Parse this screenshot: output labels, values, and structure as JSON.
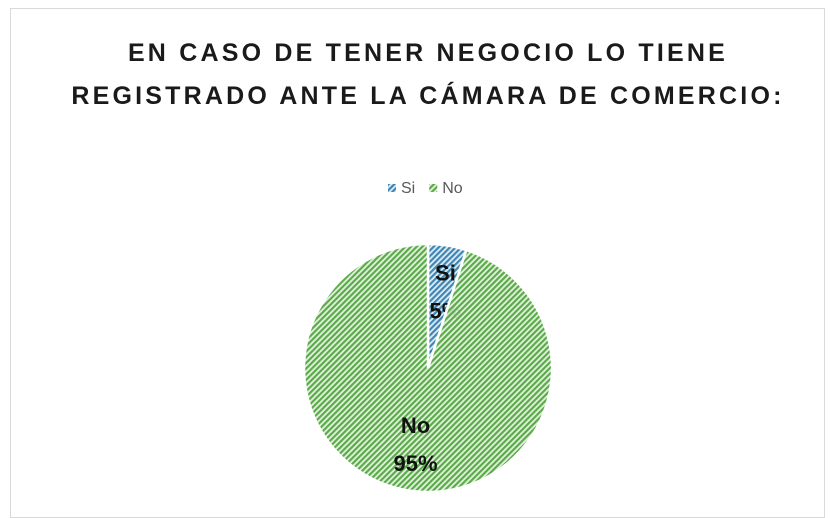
{
  "chart_data": {
    "type": "pie",
    "title": "EN CASO DE TENER NEGOCIO LO TIENE REGISTRADO ANTE LA CÁMARA DE COMERCIO:",
    "categories": [
      "Si",
      "No"
    ],
    "values": [
      5,
      95
    ],
    "value_labels": [
      "5%",
      "95%"
    ],
    "colors": [
      "#3f86b4",
      "#5aab4a"
    ],
    "legend": "top"
  }
}
